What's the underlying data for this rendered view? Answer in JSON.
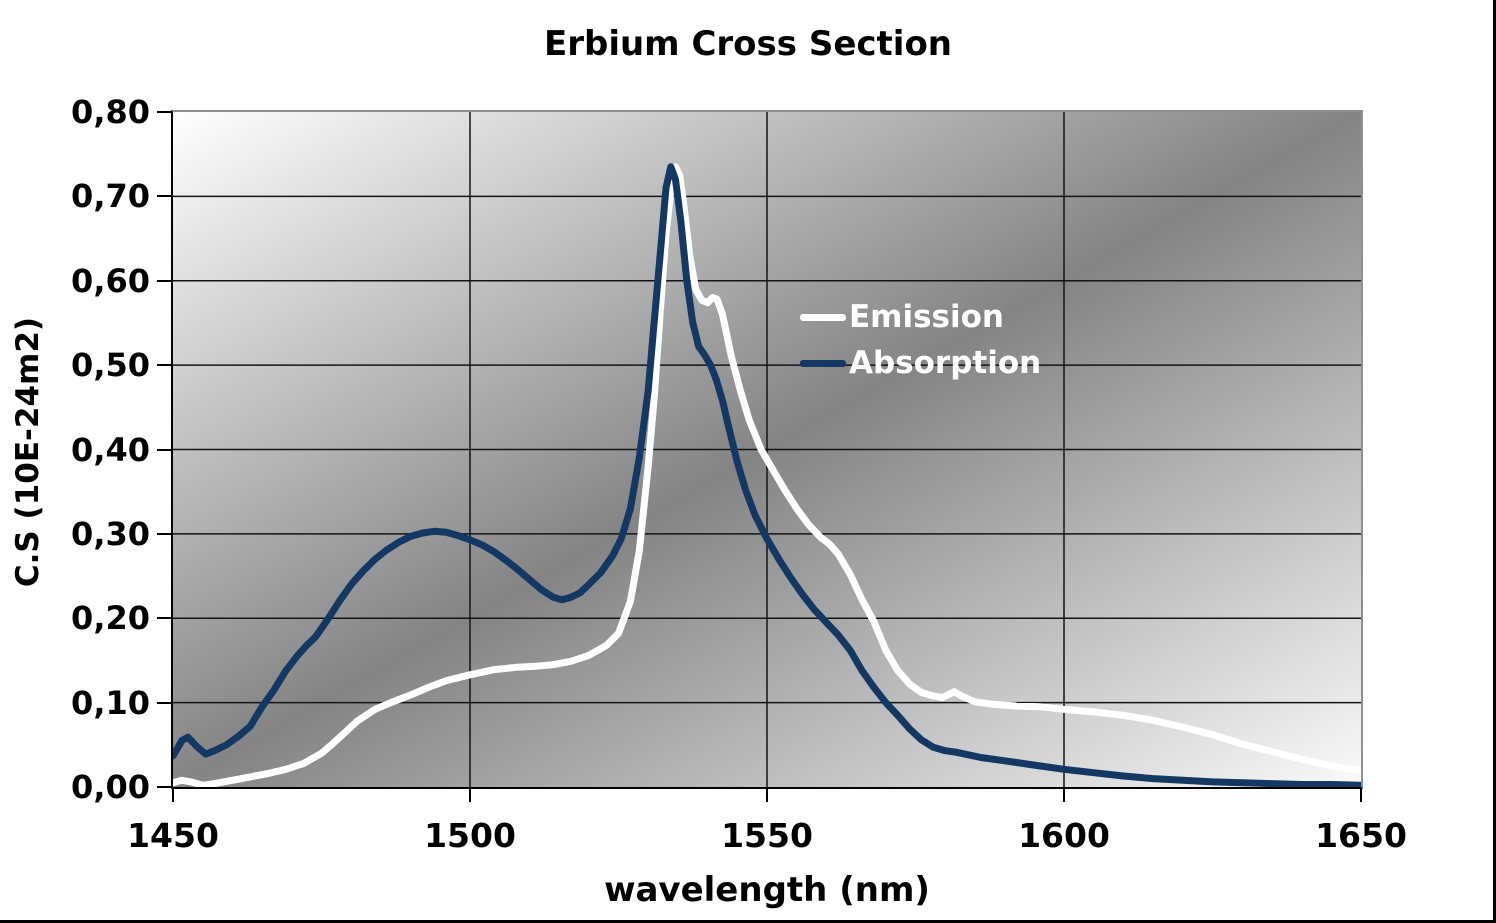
{
  "title": "Erbium Cross Section",
  "x_axis": {
    "label": "wavelength (nm)",
    "tick_labels": [
      "1450",
      "1500",
      "1550",
      "1600",
      "1650"
    ],
    "tick_values": [
      1450,
      1500,
      1550,
      1600,
      1650
    ]
  },
  "y_axis": {
    "label": "C.S (10E-24m2)",
    "tick_labels": [
      "0,00",
      "0,10",
      "0,20",
      "0,30",
      "0,40",
      "0,50",
      "0,60",
      "0,70",
      "0,80"
    ],
    "tick_values": [
      0,
      0.1,
      0.2,
      0.3,
      0.4,
      0.5,
      0.6,
      0.7,
      0.8
    ]
  },
  "legend": {
    "items": [
      {
        "label": "Emission",
        "color": "#ffffff"
      },
      {
        "label": "Absorption",
        "color": "#143864"
      }
    ]
  },
  "colors": {
    "emission_line": "#ffffff",
    "absorption_line": "#143864",
    "gridline": "#141414",
    "axis": "#000000",
    "plot_border": "#8f8f8f",
    "wall_gradient_light": "#ffffff",
    "wall_gradient_dark": "#848484",
    "text": "#000000",
    "legend_text": "#ffffff"
  },
  "chart_data": {
    "type": "line",
    "title": "Erbium Cross Section",
    "xlabel": "wavelength (nm)",
    "ylabel": "C.S (10E-24m2)",
    "xlim": [
      1450,
      1650
    ],
    "ylim": [
      0,
      0.8
    ],
    "grid": true,
    "grid_x": [
      1500,
      1550,
      1600
    ],
    "grid_y": [
      0.1,
      0.2,
      0.3,
      0.4,
      0.5,
      0.6,
      0.7
    ],
    "legend_position": "inside-upper-middle",
    "series": [
      {
        "name": "Emission",
        "color": "#ffffff",
        "width": 7,
        "points": [
          [
            1450,
            0.005
          ],
          [
            1451.5,
            0.008
          ],
          [
            1453,
            0.006
          ],
          [
            1455,
            0.002
          ],
          [
            1457,
            0.004
          ],
          [
            1460,
            0.008
          ],
          [
            1463,
            0.012
          ],
          [
            1466,
            0.016
          ],
          [
            1469,
            0.021
          ],
          [
            1472,
            0.028
          ],
          [
            1475,
            0.04
          ],
          [
            1477,
            0.052
          ],
          [
            1479,
            0.065
          ],
          [
            1481,
            0.078
          ],
          [
            1484,
            0.092
          ],
          [
            1487,
            0.101
          ],
          [
            1490,
            0.109
          ],
          [
            1493,
            0.118
          ],
          [
            1496,
            0.126
          ],
          [
            1500,
            0.133
          ],
          [
            1504,
            0.139
          ],
          [
            1508,
            0.142
          ],
          [
            1511,
            0.143
          ],
          [
            1514,
            0.145
          ],
          [
            1517,
            0.149
          ],
          [
            1520,
            0.156
          ],
          [
            1523,
            0.168
          ],
          [
            1525,
            0.182
          ],
          [
            1527,
            0.22
          ],
          [
            1528.5,
            0.28
          ],
          [
            1530,
            0.38
          ],
          [
            1531,
            0.46
          ],
          [
            1532,
            0.56
          ],
          [
            1533,
            0.655
          ],
          [
            1534,
            0.72
          ],
          [
            1534.6,
            0.735
          ],
          [
            1535.3,
            0.725
          ],
          [
            1536,
            0.69
          ],
          [
            1537,
            0.63
          ],
          [
            1538,
            0.59
          ],
          [
            1539,
            0.577
          ],
          [
            1540,
            0.574
          ],
          [
            1540.8,
            0.58
          ],
          [
            1541.6,
            0.578
          ],
          [
            1542.5,
            0.56
          ],
          [
            1544,
            0.51
          ],
          [
            1545.5,
            0.47
          ],
          [
            1547,
            0.435
          ],
          [
            1549,
            0.4
          ],
          [
            1551,
            0.376
          ],
          [
            1553,
            0.352
          ],
          [
            1555,
            0.33
          ],
          [
            1557,
            0.311
          ],
          [
            1559,
            0.296
          ],
          [
            1560.5,
            0.288
          ],
          [
            1562,
            0.276
          ],
          [
            1564,
            0.252
          ],
          [
            1566,
            0.222
          ],
          [
            1568,
            0.196
          ],
          [
            1570,
            0.162
          ],
          [
            1572,
            0.138
          ],
          [
            1574,
            0.122
          ],
          [
            1576,
            0.112
          ],
          [
            1578,
            0.108
          ],
          [
            1579.5,
            0.106
          ],
          [
            1581.5,
            0.113
          ],
          [
            1583,
            0.107
          ],
          [
            1585,
            0.101
          ],
          [
            1588,
            0.098
          ],
          [
            1592,
            0.096
          ],
          [
            1596,
            0.095
          ],
          [
            1600,
            0.092
          ],
          [
            1605,
            0.089
          ],
          [
            1610,
            0.085
          ],
          [
            1615,
            0.079
          ],
          [
            1620,
            0.071
          ],
          [
            1625,
            0.062
          ],
          [
            1630,
            0.051
          ],
          [
            1635,
            0.042
          ],
          [
            1640,
            0.033
          ],
          [
            1645,
            0.025
          ],
          [
            1650,
            0.019
          ]
        ]
      },
      {
        "name": "Absorption",
        "color": "#143864",
        "width": 7,
        "points": [
          [
            1450,
            0.037
          ],
          [
            1451.5,
            0.055
          ],
          [
            1452.5,
            0.059
          ],
          [
            1454,
            0.048
          ],
          [
            1455.5,
            0.039
          ],
          [
            1457,
            0.043
          ],
          [
            1459,
            0.05
          ],
          [
            1461,
            0.06
          ],
          [
            1463,
            0.072
          ],
          [
            1465,
            0.095
          ],
          [
            1467,
            0.115
          ],
          [
            1469,
            0.138
          ],
          [
            1471,
            0.156
          ],
          [
            1472.5,
            0.168
          ],
          [
            1474,
            0.178
          ],
          [
            1476,
            0.198
          ],
          [
            1478,
            0.22
          ],
          [
            1480,
            0.24
          ],
          [
            1482,
            0.256
          ],
          [
            1484,
            0.27
          ],
          [
            1486,
            0.281
          ],
          [
            1488,
            0.29
          ],
          [
            1490,
            0.297
          ],
          [
            1492,
            0.301
          ],
          [
            1494,
            0.303
          ],
          [
            1496,
            0.302
          ],
          [
            1498,
            0.298
          ],
          [
            1500,
            0.293
          ],
          [
            1502,
            0.287
          ],
          [
            1504,
            0.279
          ],
          [
            1506,
            0.269
          ],
          [
            1508,
            0.258
          ],
          [
            1510,
            0.246
          ],
          [
            1512,
            0.234
          ],
          [
            1514,
            0.225
          ],
          [
            1515.5,
            0.222
          ],
          [
            1517,
            0.225
          ],
          [
            1518.5,
            0.23
          ],
          [
            1520,
            0.24
          ],
          [
            1522,
            0.254
          ],
          [
            1524,
            0.274
          ],
          [
            1525.5,
            0.295
          ],
          [
            1527,
            0.33
          ],
          [
            1528.5,
            0.39
          ],
          [
            1530,
            0.47
          ],
          [
            1531,
            0.55
          ],
          [
            1532,
            0.63
          ],
          [
            1533,
            0.71
          ],
          [
            1533.8,
            0.735
          ],
          [
            1534.6,
            0.72
          ],
          [
            1535.5,
            0.67
          ],
          [
            1536.5,
            0.6
          ],
          [
            1537.5,
            0.55
          ],
          [
            1538.5,
            0.522
          ],
          [
            1539.5,
            0.512
          ],
          [
            1540.5,
            0.5
          ],
          [
            1541.5,
            0.482
          ],
          [
            1542.5,
            0.458
          ],
          [
            1543.5,
            0.428
          ],
          [
            1545,
            0.385
          ],
          [
            1546.5,
            0.35
          ],
          [
            1548,
            0.322
          ],
          [
            1550,
            0.294
          ],
          [
            1552,
            0.27
          ],
          [
            1554,
            0.248
          ],
          [
            1556,
            0.228
          ],
          [
            1558,
            0.21
          ],
          [
            1560,
            0.195
          ],
          [
            1562,
            0.18
          ],
          [
            1564,
            0.162
          ],
          [
            1566,
            0.138
          ],
          [
            1568,
            0.118
          ],
          [
            1570,
            0.1
          ],
          [
            1572,
            0.085
          ],
          [
            1574,
            0.069
          ],
          [
            1576,
            0.056
          ],
          [
            1578,
            0.047
          ],
          [
            1580,
            0.043
          ],
          [
            1582,
            0.041
          ],
          [
            1584,
            0.038
          ],
          [
            1586,
            0.035
          ],
          [
            1590,
            0.031
          ],
          [
            1595,
            0.026
          ],
          [
            1600,
            0.021
          ],
          [
            1605,
            0.017
          ],
          [
            1610,
            0.013
          ],
          [
            1615,
            0.01
          ],
          [
            1620,
            0.008
          ],
          [
            1625,
            0.006
          ],
          [
            1630,
            0.005
          ],
          [
            1635,
            0.004
          ],
          [
            1640,
            0.003
          ],
          [
            1645,
            0.003
          ],
          [
            1650,
            0.002
          ]
        ]
      }
    ]
  }
}
